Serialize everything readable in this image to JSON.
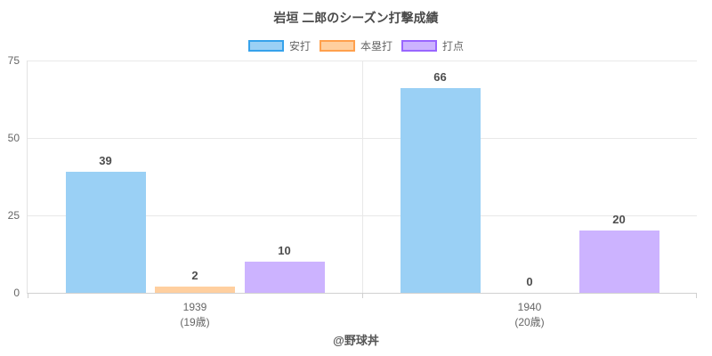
{
  "footer": "@野球丼",
  "chart_data": {
    "type": "bar",
    "title": "岩垣 二郎のシーズン打撃成績",
    "categories": [
      "1939",
      "1940"
    ],
    "category_sublabels": [
      "(19歳)",
      "(20歳)"
    ],
    "series": [
      {
        "name": "安打",
        "values": [
          39,
          66
        ],
        "fill": "#9AD0F5",
        "border": "#36A2EB"
      },
      {
        "name": "本塁打",
        "values": [
          2,
          0
        ],
        "fill": "#FFCF9F",
        "border": "#FFA04D"
      },
      {
        "name": "打点",
        "values": [
          10,
          20
        ],
        "fill": "#CCB3FF",
        "border": "#9966FF"
      }
    ],
    "ylim": [
      0,
      75
    ],
    "yticks": [
      0,
      25,
      50,
      75
    ],
    "grid": true,
    "legend_position": "top",
    "data_labels": true
  }
}
